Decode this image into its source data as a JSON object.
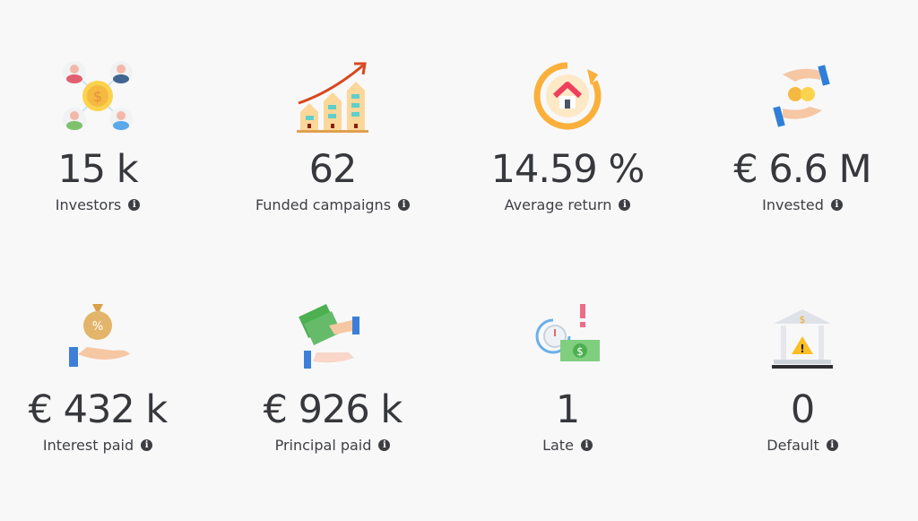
{
  "stats": [
    {
      "value": "15 k",
      "label": "Investors",
      "icon": "investors-network-icon"
    },
    {
      "value": "62",
      "label": "Funded campaigns",
      "icon": "growing-buildings-icon"
    },
    {
      "value": "14.59 %",
      "label": "Average return",
      "icon": "house-return-icon"
    },
    {
      "value": "€ 6.6 M",
      "label": "Invested",
      "icon": "hands-coins-icon"
    },
    {
      "value": "€ 432 k",
      "label": "Interest paid",
      "icon": "money-bag-hand-icon"
    },
    {
      "value": "€ 926 k",
      "label": "Principal paid",
      "icon": "cash-handover-icon"
    },
    {
      "value": "1",
      "label": "Late",
      "icon": "late-payment-icon"
    },
    {
      "value": "0",
      "label": "Default",
      "icon": "bank-warning-icon"
    }
  ],
  "info_glyph": "i"
}
